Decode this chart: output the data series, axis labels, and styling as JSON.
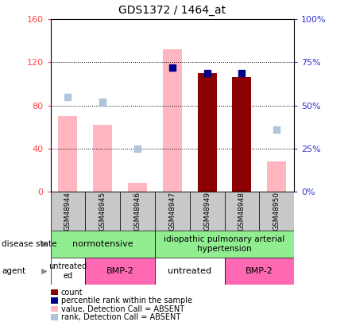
{
  "title": "GDS1372 / 1464_at",
  "samples": [
    "GSM48944",
    "GSM48945",
    "GSM48946",
    "GSM48947",
    "GSM48949",
    "GSM48948",
    "GSM48950"
  ],
  "value_absent": [
    70,
    62,
    8,
    132,
    null,
    null,
    28
  ],
  "rank_absent_pct": [
    55,
    52,
    25,
    null,
    null,
    null,
    36
  ],
  "count": [
    null,
    null,
    null,
    null,
    110,
    106,
    null
  ],
  "percentile_left": [
    null,
    null,
    null,
    115,
    110,
    110,
    null
  ],
  "ylim_left": [
    0,
    160
  ],
  "ylim_right": [
    0,
    100
  ],
  "yticks_left": [
    0,
    40,
    80,
    120,
    160
  ],
  "yticks_right": [
    0,
    25,
    50,
    75,
    100
  ],
  "bar_color_value": "#FFB6C1",
  "bar_color_rank": "#B0C4DE",
  "bar_color_count": "#8B0000",
  "bar_color_percentile": "#00008B",
  "tick_color_left": "#FF4444",
  "tick_color_right": "#3333CC",
  "disease_color": "#90EE90",
  "agent_color_magenta": "#FF69B4",
  "agent_color_white": "#FFFFFF"
}
